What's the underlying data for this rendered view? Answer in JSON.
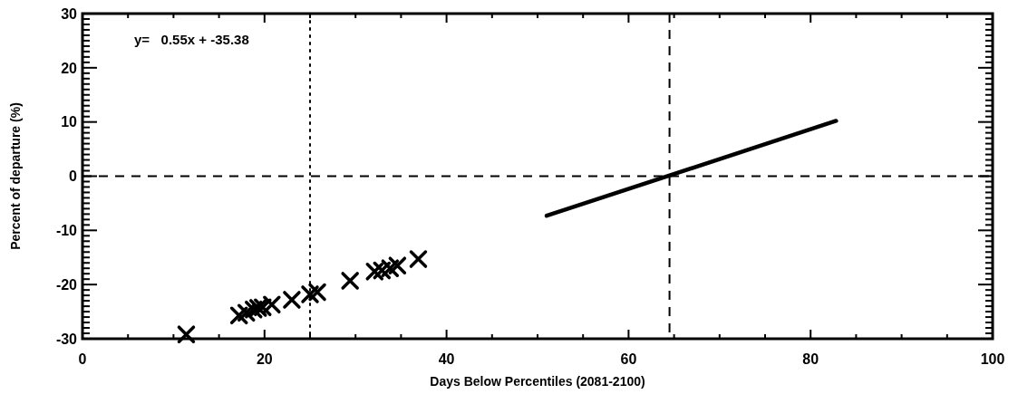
{
  "chart_data": {
    "type": "scatter",
    "xlabel": "Days Below Percentiles (2081-2100)",
    "ylabel": "Percent of departure (%)",
    "annotations": [
      "y=   0.55x + -35.38"
    ],
    "xlim": [
      0,
      100
    ],
    "ylim": [
      -30,
      30
    ],
    "xticks": [
      0,
      {
        "value": 5,
        "label": null
      },
      {
        "value": 10,
        "label": null
      },
      {
        "value": 15,
        "label": null
      },
      20,
      {
        "value": 25,
        "label": null
      },
      {
        "value": 30,
        "label": null
      },
      {
        "value": 35,
        "label": null
      },
      40,
      {
        "value": 45,
        "label": null
      },
      {
        "value": 50,
        "label": null
      },
      {
        "value": 55,
        "label": null
      },
      60,
      {
        "value": 65,
        "label": null
      },
      {
        "value": 70,
        "label": null
      },
      {
        "value": 75,
        "label": null
      },
      80,
      {
        "value": 85,
        "label": null
      },
      {
        "value": 90,
        "label": null
      },
      {
        "value": 95,
        "label": null
      },
      100
    ],
    "yticks": [
      -30,
      {
        "value": -29,
        "label": null
      },
      {
        "value": -28,
        "label": null
      },
      {
        "value": -27,
        "label": null
      },
      {
        "value": -26,
        "label": null
      },
      {
        "value": -25,
        "label": null
      },
      {
        "value": -24,
        "label": null
      },
      {
        "value": -23,
        "label": null
      },
      {
        "value": -22,
        "label": null
      },
      {
        "value": -21,
        "label": null
      },
      -20,
      {
        "value": -19,
        "label": null
      },
      {
        "value": -18,
        "label": null
      },
      {
        "value": -17,
        "label": null
      },
      {
        "value": -16,
        "label": null
      },
      {
        "value": -15,
        "label": null
      },
      {
        "value": -14,
        "label": null
      },
      {
        "value": -13,
        "label": null
      },
      {
        "value": -12,
        "label": null
      },
      {
        "value": -11,
        "label": null
      },
      -10,
      {
        "value": -9,
        "label": null
      },
      {
        "value": -8,
        "label": null
      },
      {
        "value": -7,
        "label": null
      },
      {
        "value": -6,
        "label": null
      },
      {
        "value": -5,
        "label": null
      },
      {
        "value": -4,
        "label": null
      },
      {
        "value": -3,
        "label": null
      },
      {
        "value": -2,
        "label": null
      },
      {
        "value": -1,
        "label": null
      },
      0,
      {
        "value": 1,
        "label": null
      },
      {
        "value": 2,
        "label": null
      },
      {
        "value": 3,
        "label": null
      },
      {
        "value": 4,
        "label": null
      },
      {
        "value": 5,
        "label": null
      },
      {
        "value": 6,
        "label": null
      },
      {
        "value": 7,
        "label": null
      },
      {
        "value": 8,
        "label": null
      },
      {
        "value": 9,
        "label": null
      },
      10,
      {
        "value": 11,
        "label": null
      },
      {
        "value": 12,
        "label": null
      },
      {
        "value": 13,
        "label": null
      },
      {
        "value": 14,
        "label": null
      },
      {
        "value": 15,
        "label": null
      },
      {
        "value": 16,
        "label": null
      },
      {
        "value": 17,
        "label": null
      },
      {
        "value": 18,
        "label": null
      },
      {
        "value": 19,
        "label": null
      },
      20,
      {
        "value": 21,
        "label": null
      },
      {
        "value": 22,
        "label": null
      },
      {
        "value": 23,
        "label": null
      },
      {
        "value": 24,
        "label": null
      },
      {
        "value": 25,
        "label": null
      },
      {
        "value": 26,
        "label": null
      },
      {
        "value": 27,
        "label": null
      },
      {
        "value": 28,
        "label": null
      },
      {
        "value": 29,
        "label": null
      },
      30
    ],
    "series": [
      {
        "marker": "cross",
        "color": "#000000",
        "x": [
          11.4,
          17.2,
          18.0,
          18.8,
          19.3,
          19.8,
          20.8,
          23.0,
          25.0,
          25.8,
          29.4,
          32.1,
          32.9,
          33.8,
          34.6,
          36.9
        ],
        "values": [
          -29.2,
          -25.7,
          -25.2,
          -24.6,
          -24.3,
          -24.2,
          -23.7,
          -22.8,
          -21.8,
          -21.4,
          -19.3,
          -17.6,
          -17.4,
          -17.0,
          -16.5,
          -15.3
        ]
      },
      {
        "type": "line",
        "marker": "none",
        "color": "#000000",
        "x": [
          51,
          82.8
        ],
        "values": [
          -7.3,
          10.2
        ]
      }
    ],
    "ref_lines": [
      {
        "axis": "x",
        "value": 25,
        "line_style": "dotted",
        "color": "#000000"
      },
      {
        "axis": "x",
        "value": 64.5,
        "line_style": "dashed",
        "color": "#000000"
      },
      {
        "axis": "y",
        "value": 0,
        "line_style": "dashed",
        "color": "#000000"
      }
    ]
  }
}
